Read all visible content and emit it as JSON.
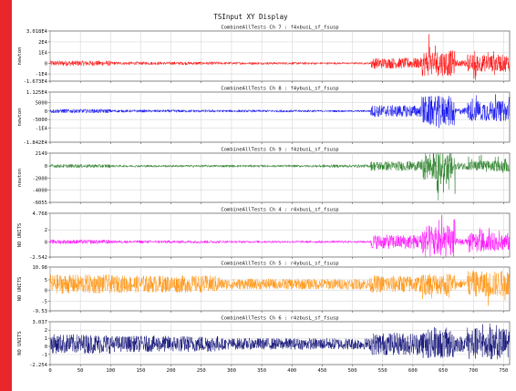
{
  "window_title": "TSInput XY Display",
  "x_axis_label": "",
  "chart_data": [
    {
      "type": "line",
      "title": "CombineAllTests  Ch 7 : f4xbusL_sf_fsusp",
      "ylabel": "newton",
      "color": "#ff0000",
      "ylim": [
        -16730,
        30180
      ],
      "y_ticks": [
        -16730,
        -10000,
        0,
        10000,
        20000,
        30180
      ],
      "y_tick_labels": [
        "-1.673E4",
        "-1E4",
        "0",
        "1E4",
        "2E4",
        "3.018E4"
      ],
      "xlim": [
        0,
        760
      ],
      "x_ticks": [
        0,
        50,
        100,
        150,
        200,
        250,
        300,
        350,
        400,
        450,
        500,
        550,
        600,
        650,
        700,
        750
      ],
      "baseline": 0,
      "segments": [
        {
          "x": [
            0,
            100
          ],
          "amp": 2500
        },
        {
          "x": [
            100,
            280
          ],
          "amp": 1500
        },
        {
          "x": [
            280,
            440
          ],
          "amp": 1200
        },
        {
          "x": [
            440,
            530
          ],
          "amp": 1000
        },
        {
          "x": [
            530,
            615
          ],
          "amp": 5000
        },
        {
          "x": [
            615,
            670
          ],
          "amp": 12000,
          "high": 28000,
          "low": -3000
        },
        {
          "x": [
            670,
            690
          ],
          "amp": 3000
        },
        {
          "x": [
            690,
            760
          ],
          "amp": 8000,
          "high": 12000,
          "low": -16000
        }
      ]
    },
    {
      "type": "line",
      "title": "CombineAllTests  Ch 8 : f4ybusL_sf_fsusp",
      "ylabel": "newton",
      "color": "#0000ee",
      "ylim": [
        -18420,
        11250
      ],
      "y_ticks": [
        -18420,
        -10000,
        -5000,
        0,
        5000,
        11250
      ],
      "y_tick_labels": [
        "-1.842E4",
        "-1E4",
        "-5000",
        "0",
        "5000",
        "1.125E4"
      ],
      "xlim": [
        0,
        760
      ],
      "x_ticks": [
        0,
        50,
        100,
        150,
        200,
        250,
        300,
        350,
        400,
        450,
        500,
        550,
        600,
        650,
        700,
        750
      ],
      "baseline": 0,
      "segments": [
        {
          "x": [
            0,
            100
          ],
          "amp": 1200
        },
        {
          "x": [
            100,
            280
          ],
          "amp": 800
        },
        {
          "x": [
            280,
            440
          ],
          "amp": 700
        },
        {
          "x": [
            440,
            530
          ],
          "amp": 600
        },
        {
          "x": [
            530,
            615
          ],
          "amp": 3500
        },
        {
          "x": [
            615,
            670
          ],
          "amp": 9000,
          "high": 3000,
          "low": -16000
        },
        {
          "x": [
            670,
            690
          ],
          "amp": 2000
        },
        {
          "x": [
            690,
            760
          ],
          "amp": 6000,
          "high": 10000,
          "low": -6000
        }
      ]
    },
    {
      "type": "line",
      "title": "CombineAllTests  Ch 9 : f4zbusL_sf_fsusp",
      "ylabel": "newton",
      "color": "#1f7a1f",
      "ylim": [
        -6055,
        2149
      ],
      "y_ticks": [
        -6055,
        -4000,
        -2000,
        0,
        2149
      ],
      "y_tick_labels": [
        "-6055",
        "-4000",
        "-2000",
        "0",
        "2149"
      ],
      "xlim": [
        0,
        760
      ],
      "x_ticks": [
        0,
        50,
        100,
        150,
        200,
        250,
        300,
        350,
        400,
        450,
        500,
        550,
        600,
        650,
        700,
        750
      ],
      "baseline": 0,
      "segments": [
        {
          "x": [
            0,
            100
          ],
          "amp": 300
        },
        {
          "x": [
            100,
            280
          ],
          "amp": 200
        },
        {
          "x": [
            280,
            440
          ],
          "amp": 200
        },
        {
          "x": [
            440,
            530
          ],
          "amp": 250
        },
        {
          "x": [
            530,
            615
          ],
          "amp": 800
        },
        {
          "x": [
            615,
            670
          ],
          "amp": 2500,
          "high": 400,
          "low": -5800
        },
        {
          "x": [
            670,
            690
          ],
          "amp": 600
        },
        {
          "x": [
            690,
            760
          ],
          "amp": 900,
          "high": 2000,
          "low": -1200
        }
      ]
    },
    {
      "type": "line",
      "title": "CombineAllTests  Ch 4 : r4xbusL_sf_fsusp",
      "ylabel": "NO UNITS",
      "color": "#ff00ff",
      "ylim": [
        -2.542,
        4.768
      ],
      "y_ticks": [
        -2.542,
        0,
        2,
        4.768
      ],
      "y_tick_labels": [
        "-2.542",
        "0",
        "2",
        "4.768"
      ],
      "xlim": [
        0,
        760
      ],
      "x_ticks": [
        0,
        50,
        100,
        150,
        200,
        250,
        300,
        350,
        400,
        450,
        500,
        550,
        600,
        650,
        700,
        750
      ],
      "baseline": 0,
      "segments": [
        {
          "x": [
            0,
            100
          ],
          "amp": 0.35
        },
        {
          "x": [
            100,
            280
          ],
          "amp": 0.25
        },
        {
          "x": [
            280,
            440
          ],
          "amp": 0.2
        },
        {
          "x": [
            440,
            530
          ],
          "amp": 0.2
        },
        {
          "x": [
            530,
            615
          ],
          "amp": 1.2
        },
        {
          "x": [
            615,
            670
          ],
          "amp": 2.8,
          "high": 4.6,
          "low": -0.4
        },
        {
          "x": [
            670,
            690
          ],
          "amp": 0.6
        },
        {
          "x": [
            690,
            760
          ],
          "amp": 1.5,
          "high": 2.5,
          "low": -1.8
        }
      ]
    },
    {
      "type": "line",
      "title": "CombineAllTests  Ch 5 : r4ybusL_sf_fsusp",
      "ylabel": "NO UNITS",
      "color": "#ff8c00",
      "ylim": [
        -9.53,
        10.98
      ],
      "y_ticks": [
        -9.53,
        -5,
        0,
        5,
        10.98
      ],
      "y_tick_labels": [
        "-9.53",
        "-5",
        "0",
        "5",
        "10.98"
      ],
      "xlim": [
        0,
        760
      ],
      "x_ticks": [
        0,
        50,
        100,
        150,
        200,
        250,
        300,
        350,
        400,
        450,
        500,
        550,
        600,
        650,
        700,
        750
      ],
      "baseline": 3,
      "segments": [
        {
          "x": [
            0,
            100
          ],
          "amp": 4.5
        },
        {
          "x": [
            100,
            280
          ],
          "amp": 4
        },
        {
          "x": [
            280,
            440
          ],
          "amp": 2.5
        },
        {
          "x": [
            440,
            530
          ],
          "amp": 2.5
        },
        {
          "x": [
            530,
            615
          ],
          "amp": 4
        },
        {
          "x": [
            615,
            670
          ],
          "amp": 5,
          "high": 8,
          "low": -4
        },
        {
          "x": [
            670,
            690
          ],
          "amp": 2
        },
        {
          "x": [
            690,
            760
          ],
          "amp": 6,
          "high": 10,
          "low": -8
        }
      ]
    },
    {
      "type": "line",
      "title": "CombineAllTests  Ch 6 : r4zbusL_sf_fsusp",
      "ylabel": "NO UNITS",
      "color": "#00006e",
      "ylim": [
        -2.254,
        3.037
      ],
      "y_ticks": [
        -2.254,
        -1,
        0,
        1,
        2,
        3.037
      ],
      "y_tick_labels": [
        "-2.254",
        "-1",
        "0",
        "1",
        "2",
        "3.037"
      ],
      "xlim": [
        0,
        760
      ],
      "x_ticks": [
        0,
        50,
        100,
        150,
        200,
        250,
        300,
        350,
        400,
        450,
        500,
        550,
        600,
        650,
        700,
        750
      ],
      "x_tick_labels": [
        "0",
        "50",
        "100",
        "150",
        "200",
        "250",
        "300",
        "350",
        "400",
        "450",
        "500",
        "550",
        "600",
        "650",
        "700",
        "750"
      ],
      "baseline": 0.3,
      "segments": [
        {
          "x": [
            0,
            100
          ],
          "amp": 1.2
        },
        {
          "x": [
            100,
            280
          ],
          "amp": 1.0
        },
        {
          "x": [
            280,
            440
          ],
          "amp": 0.7
        },
        {
          "x": [
            440,
            530
          ],
          "amp": 0.7
        },
        {
          "x": [
            530,
            615
          ],
          "amp": 1.4
        },
        {
          "x": [
            615,
            670
          ],
          "amp": 1.8,
          "high": 2.8,
          "low": -1.5
        },
        {
          "x": [
            670,
            690
          ],
          "amp": 1.0
        },
        {
          "x": [
            690,
            760
          ],
          "amp": 2.0,
          "high": 2.8,
          "low": -2.0
        }
      ]
    }
  ]
}
